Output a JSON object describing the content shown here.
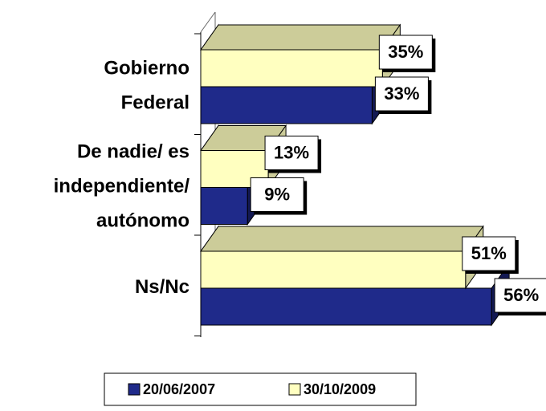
{
  "chart_data": {
    "type": "bar3d_horizontal",
    "categories": [
      [
        "Gobierno",
        "Federal"
      ],
      [
        "De nadie/ es",
        "independiente/",
        "autónomo"
      ],
      [
        "Ns/Nc"
      ]
    ],
    "series": [
      {
        "name": "20/06/2007",
        "color": "#1f2a8a",
        "values": [
          33,
          9,
          56
        ],
        "value_labels": [
          "33%",
          "9%",
          "56%"
        ]
      },
      {
        "name": "30/10/2009",
        "color": "#ffffc0",
        "values": [
          35,
          13,
          51
        ],
        "value_labels": [
          "35%",
          "13%",
          "51%"
        ]
      }
    ],
    "xlim": [
      0,
      60
    ],
    "legend": "bottom"
  }
}
